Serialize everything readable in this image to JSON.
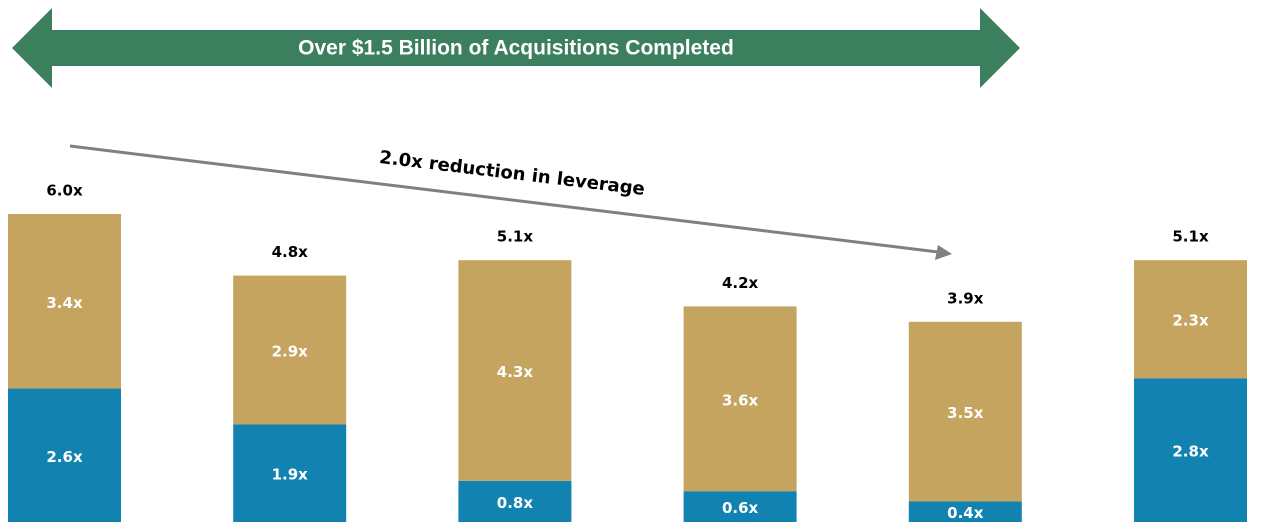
{
  "chart_data": {
    "type": "stacked-bar",
    "title": "Over $1.5 Billion of Acquisitions Completed",
    "annotations": [
      "2.0x reduction in leverage"
    ],
    "categories": [
      null,
      null,
      null,
      null,
      null,
      null
    ],
    "series": [
      {
        "color": "#1283b0",
        "values": [
          2.6,
          1.9,
          0.8,
          0.6,
          0.4,
          2.8
        ],
        "value_labels": [
          "2.6x",
          "1.9x",
          "0.8x",
          "0.6x",
          "0.4x",
          "2.8x"
        ]
      },
      {
        "color": "#c4a45f",
        "values": [
          3.4,
          2.9,
          4.3,
          3.6,
          3.5,
          2.3
        ],
        "value_labels": [
          "3.4x",
          "2.9x",
          "4.3x",
          "3.6x",
          "3.5x",
          "2.3x"
        ]
      }
    ],
    "totals": {
      "values": [
        6.0,
        4.8,
        5.1,
        4.2,
        3.9,
        5.1
      ],
      "value_labels": [
        "6.0x",
        "4.8x",
        "5.1x",
        "4.2x",
        "3.9x",
        "5.1x"
      ]
    }
  }
}
